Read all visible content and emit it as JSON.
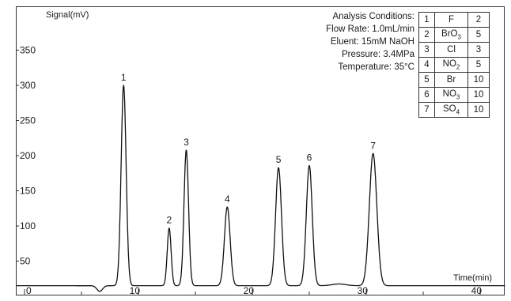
{
  "chart_data": {
    "type": "line",
    "ylabel": "Signal(mV)",
    "xlabel": "Time(min)",
    "xlim": [
      0,
      42
    ],
    "ylim": [
      0,
      350
    ],
    "x_ticks": [
      0,
      10,
      20,
      30,
      40
    ],
    "y_ticks": [
      50,
      100,
      150,
      200,
      250,
      300,
      350
    ],
    "baseline": 15,
    "grid": false,
    "peaks": [
      {
        "label": "1",
        "x": 8.7,
        "y": 300
      },
      {
        "label": "2",
        "x": 12.7,
        "y": 97
      },
      {
        "label": "3",
        "x": 14.2,
        "y": 208
      },
      {
        "label": "4",
        "x": 17.8,
        "y": 127
      },
      {
        "label": "5",
        "x": 22.3,
        "y": 183
      },
      {
        "label": "6",
        "x": 25.0,
        "y": 186
      },
      {
        "label": "7",
        "x": 30.6,
        "y": 203
      }
    ]
  },
  "conditions": {
    "title": "Analysis Conditions:",
    "lines": [
      "Flow Rate: 1.0mL/min",
      "Eluent: 15mM NaOH",
      "Pressure: 3.4MPa",
      "Temperature: 35°C"
    ]
  },
  "ion_table": [
    {
      "no": "1",
      "ion": "F",
      "sub": "",
      "conc": "2"
    },
    {
      "no": "2",
      "ion": "BrO",
      "sub": "3",
      "conc": "5"
    },
    {
      "no": "3",
      "ion": "Cl",
      "sub": "",
      "conc": "3"
    },
    {
      "no": "4",
      "ion": "NO",
      "sub": "2",
      "conc": "5"
    },
    {
      "no": "5",
      "ion": "Br",
      "sub": "",
      "conc": "10"
    },
    {
      "no": "6",
      "ion": "NO",
      "sub": "3",
      "conc": "10"
    },
    {
      "no": "7",
      "ion": "SO",
      "sub": "4",
      "conc": "10"
    }
  ]
}
